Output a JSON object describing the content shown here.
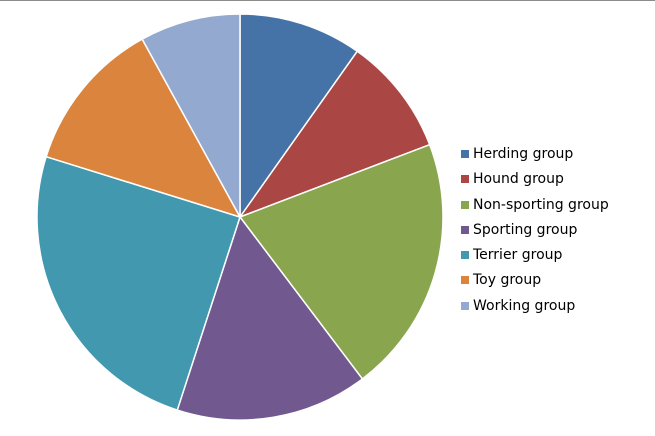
{
  "chart_data": {
    "type": "pie",
    "title": "",
    "start_angle_deg": 0,
    "direction": "clockwise",
    "legend_position": "right",
    "slices": [
      {
        "label": "Herding group",
        "value": 9.8,
        "color": "#4572A7"
      },
      {
        "label": "Hound group",
        "value": 9.4,
        "color": "#AA4643"
      },
      {
        "label": "Non-sporting group",
        "value": 20.5,
        "color": "#89A54E"
      },
      {
        "label": "Sporting group",
        "value": 15.3,
        "color": "#71588F"
      },
      {
        "label": "Terrier group",
        "value": 24.8,
        "color": "#4198AF"
      },
      {
        "label": "Toy group",
        "value": 12.2,
        "color": "#DB843D"
      },
      {
        "label": "Working group",
        "value": 8.0,
        "color": "#93A9CF"
      }
    ]
  }
}
